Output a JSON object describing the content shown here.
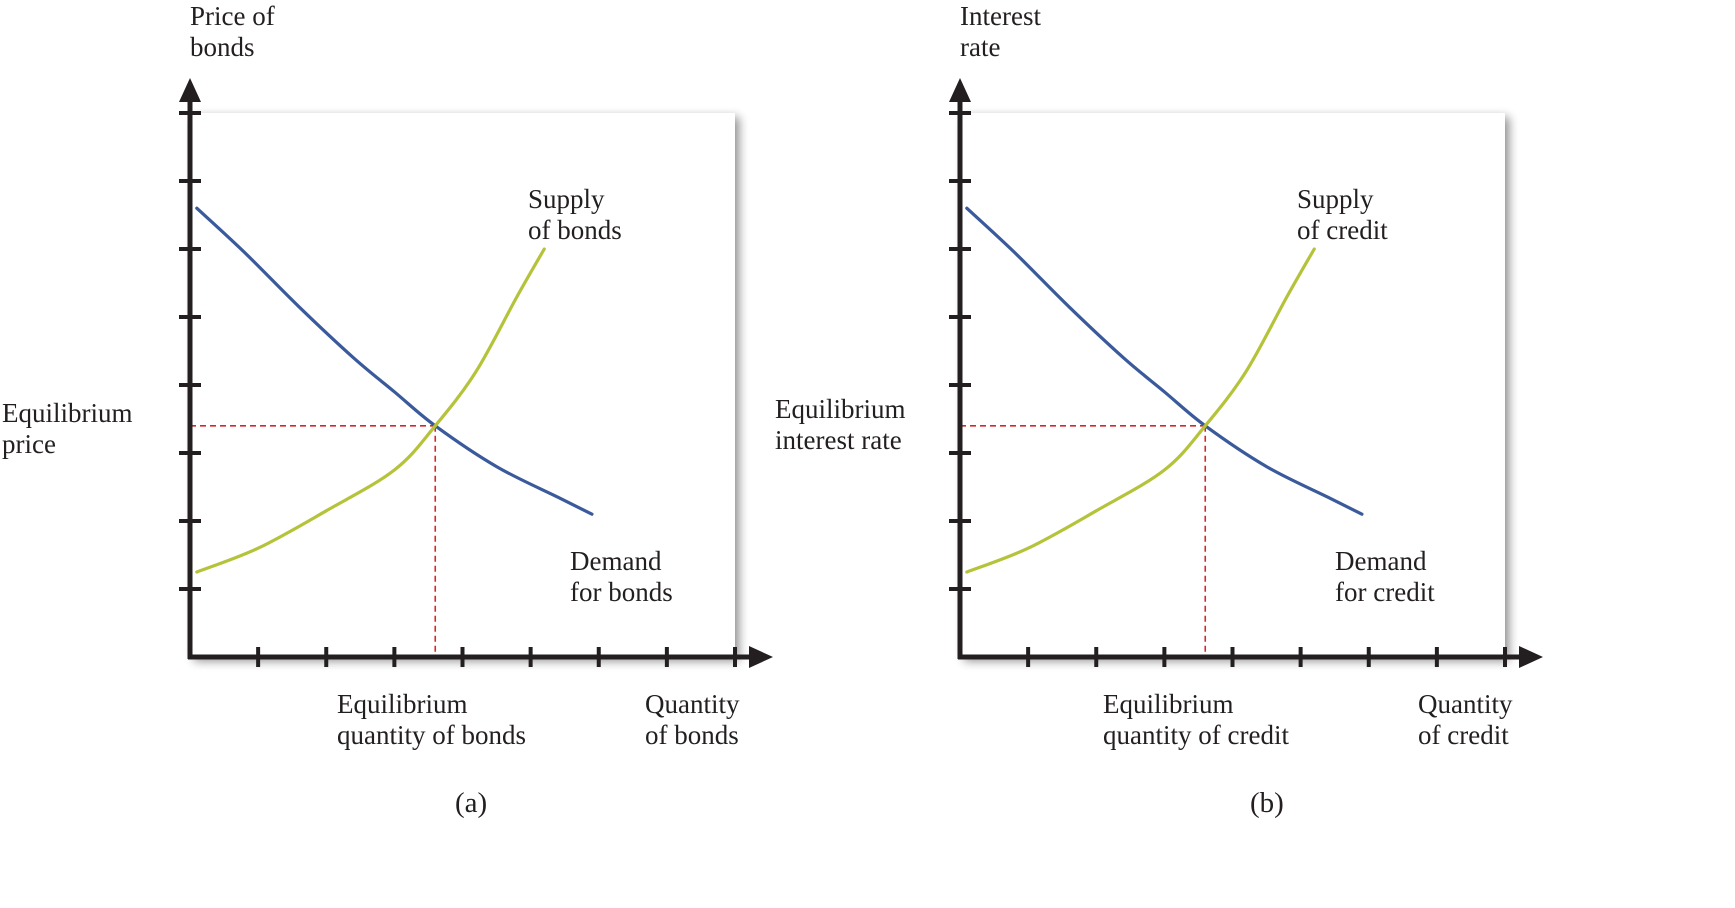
{
  "colors": {
    "axis": "#231f20",
    "demand": "#3a5a9c",
    "supply": "#b5c33a",
    "guide": "#d7262b",
    "panel_fill": "#ffffff",
    "panel_shadow": "#c8c8c8"
  },
  "chart_data": [
    {
      "type": "line",
      "panel_label": "(a)",
      "ylabel": [
        "Price of",
        "bonds"
      ],
      "xlabel": [
        "Quantity",
        "of bonds"
      ],
      "xlim": [
        0,
        8
      ],
      "ylim": [
        0,
        8
      ],
      "x_ticks": [
        1,
        2,
        3,
        4,
        5,
        6,
        7,
        8
      ],
      "y_ticks": [
        1,
        2,
        3,
        4,
        5,
        6,
        7,
        8
      ],
      "series": [
        {
          "name": "Demand for bonds",
          "label_lines": [
            "Demand",
            "for bonds"
          ],
          "role": "demand",
          "points": [
            [
              0.1,
              6.6
            ],
            [
              0.8,
              5.95
            ],
            [
              1.6,
              5.15
            ],
            [
              2.4,
              4.4
            ],
            [
              3.0,
              3.9
            ],
            [
              3.6,
              3.4
            ],
            [
              4.5,
              2.8
            ],
            [
              5.4,
              2.35
            ],
            [
              5.9,
              2.1
            ]
          ]
        },
        {
          "name": "Supply of bonds",
          "label_lines": [
            "Supply",
            "of bonds"
          ],
          "role": "supply",
          "points": [
            [
              0.1,
              1.25
            ],
            [
              1.0,
              1.6
            ],
            [
              2.0,
              2.15
            ],
            [
              3.0,
              2.75
            ],
            [
              3.6,
              3.4
            ],
            [
              4.2,
              4.2
            ],
            [
              4.8,
              5.3
            ],
            [
              5.2,
              6.0
            ]
          ]
        }
      ],
      "equilibrium": {
        "x": 3.6,
        "y": 3.4,
        "x_label": [
          "Equilibrium",
          "quantity of bonds"
        ],
        "y_label": [
          "Equilibrium",
          "price"
        ]
      }
    },
    {
      "type": "line",
      "panel_label": "(b)",
      "ylabel": [
        "Interest",
        "rate"
      ],
      "xlabel": [
        "Quantity",
        "of credit"
      ],
      "xlim": [
        0,
        8
      ],
      "ylim": [
        0,
        8
      ],
      "x_ticks": [
        1,
        2,
        3,
        4,
        5,
        6,
        7,
        8
      ],
      "y_ticks": [
        1,
        2,
        3,
        4,
        5,
        6,
        7,
        8
      ],
      "series": [
        {
          "name": "Demand for credit",
          "label_lines": [
            "Demand",
            "for credit"
          ],
          "role": "demand",
          "points": [
            [
              0.1,
              6.6
            ],
            [
              0.8,
              5.95
            ],
            [
              1.6,
              5.15
            ],
            [
              2.4,
              4.4
            ],
            [
              3.0,
              3.9
            ],
            [
              3.6,
              3.4
            ],
            [
              4.5,
              2.8
            ],
            [
              5.4,
              2.35
            ],
            [
              5.9,
              2.1
            ]
          ]
        },
        {
          "name": "Supply of credit",
          "label_lines": [
            "Supply",
            "of credit"
          ],
          "role": "supply",
          "points": [
            [
              0.1,
              1.25
            ],
            [
              1.0,
              1.6
            ],
            [
              2.0,
              2.15
            ],
            [
              3.0,
              2.75
            ],
            [
              3.6,
              3.4
            ],
            [
              4.2,
              4.2
            ],
            [
              4.8,
              5.3
            ],
            [
              5.2,
              6.0
            ]
          ]
        }
      ],
      "equilibrium": {
        "x": 3.6,
        "y": 3.4,
        "x_label": [
          "Equilibrium",
          "quantity of credit"
        ],
        "y_label": [
          "Equilibrium",
          "interest rate"
        ]
      }
    }
  ]
}
